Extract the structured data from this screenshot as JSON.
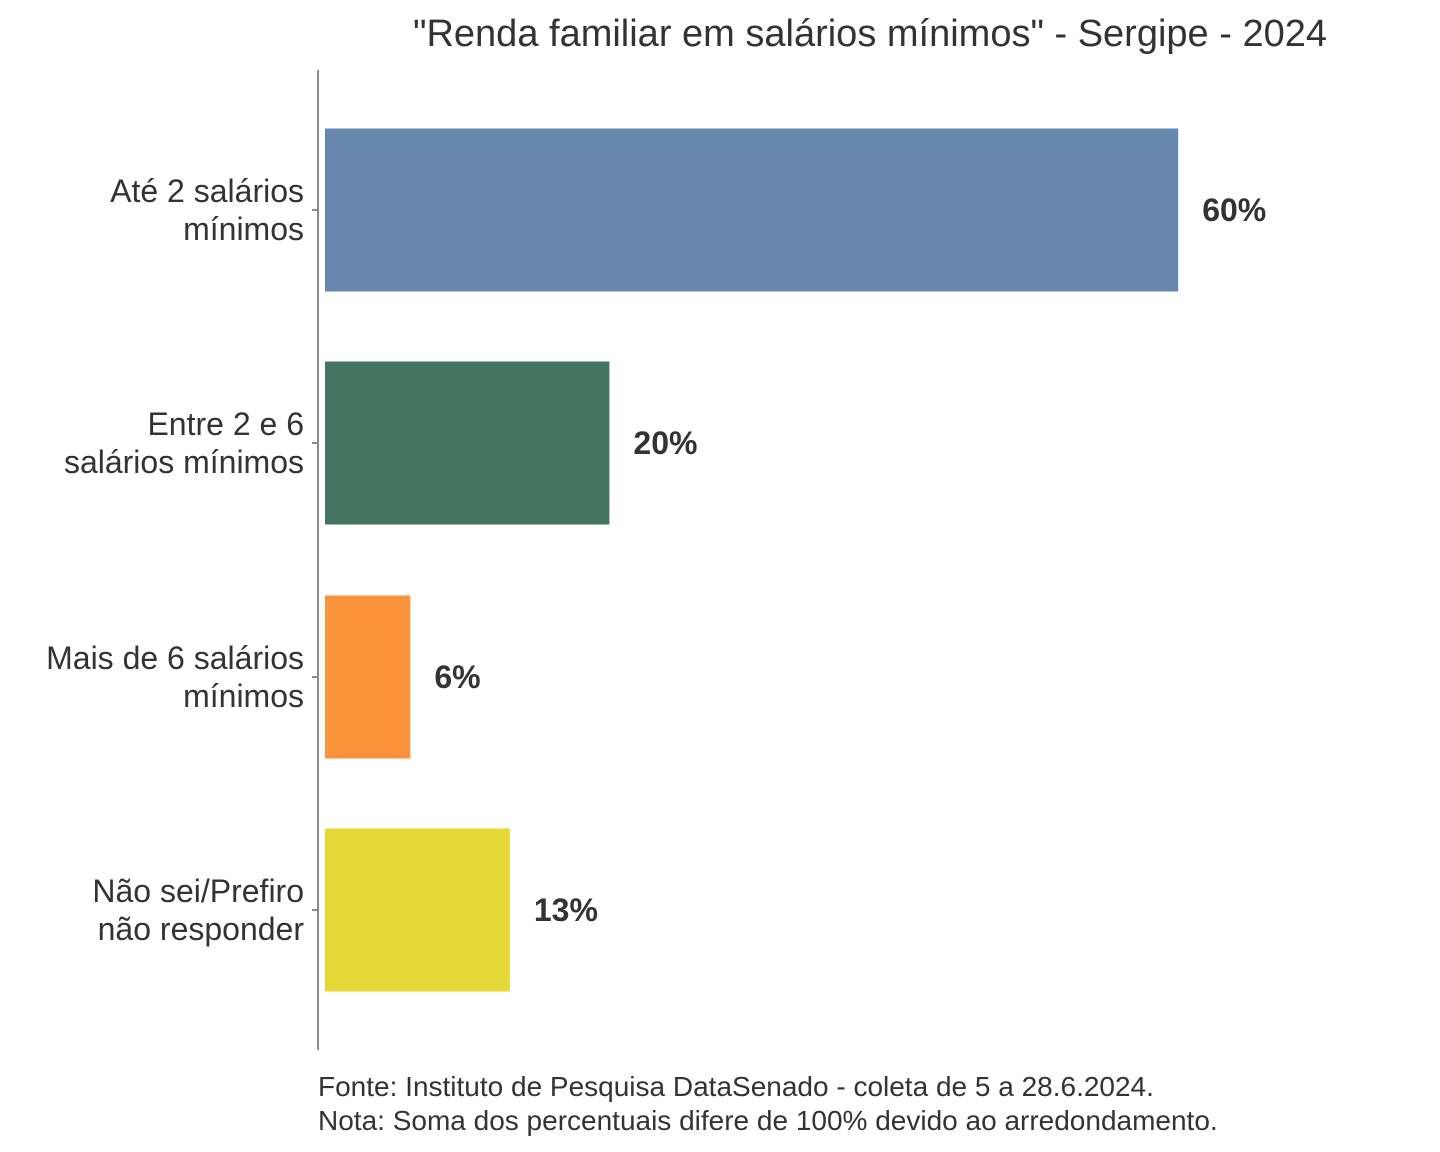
{
  "chart_data": {
    "type": "bar",
    "orientation": "horizontal",
    "title": "\"Renda familiar em salários mínimos\" - Sergipe - 2024",
    "categories": [
      [
        "Até 2 salários",
        "mínimos"
      ],
      [
        "Entre 2 e 6",
        "salários mínimos"
      ],
      [
        "Mais de 6 salários",
        "mínimos"
      ],
      [
        "Não sei/Prefiro",
        "não responder"
      ]
    ],
    "values": [
      60,
      20,
      6,
      13
    ],
    "value_labels": [
      "60%",
      "20%",
      "6%",
      "13%"
    ],
    "colors": [
      "#6688ae",
      "#447461",
      "#fb923c",
      "#e6d836"
    ],
    "xlim": [
      0,
      80
    ],
    "unit": "%",
    "grid": false,
    "legend": false
  },
  "footer": {
    "source": "Fonte: Instituto de Pesquisa DataSenado - coleta de 5 a 28.6.2024.",
    "note": "Nota: Soma dos percentuais difere de 100% devido ao arredondamento."
  }
}
